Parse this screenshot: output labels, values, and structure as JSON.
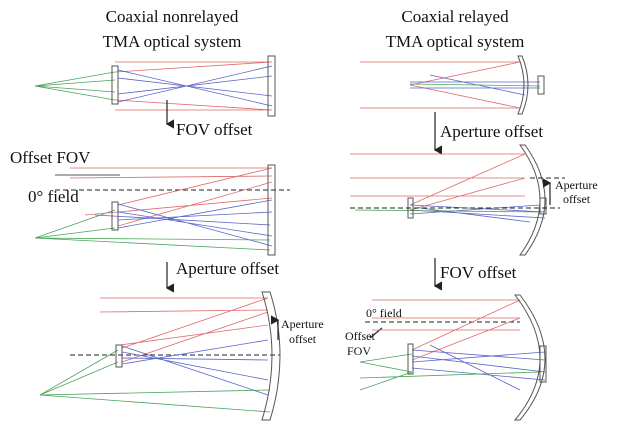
{
  "left": {
    "title": [
      "Coaxial nonrelayed",
      "TMA optical system"
    ],
    "step1": "FOV offset",
    "offset_fov": "Offset FOV",
    "zero_field": "0° field",
    "step2": "Aperture offset",
    "aperture_offset": [
      "Aperture",
      "offset"
    ]
  },
  "right": {
    "title": [
      "Coaxial relayed",
      "TMA optical system"
    ],
    "step1": "Aperture offset",
    "aperture_offset": [
      "Aperture",
      "offset"
    ],
    "step2": "FOV offset",
    "zero_field": "0° field",
    "offset_fov": [
      "Offset",
      "FOV"
    ]
  }
}
